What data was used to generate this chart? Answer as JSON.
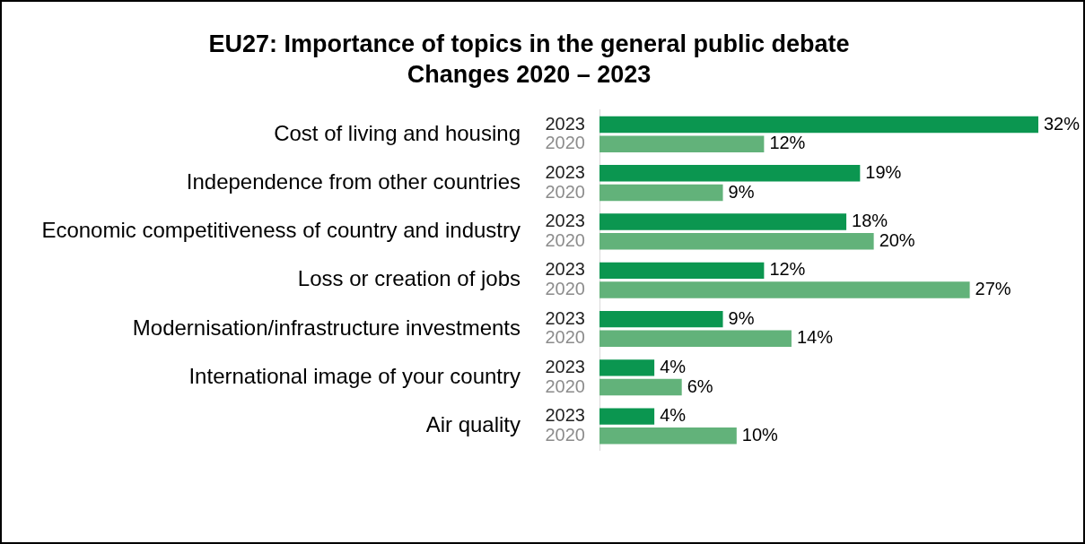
{
  "chart_data": {
    "type": "bar",
    "orientation": "horizontal",
    "title": "EU27: Importance of topics in the general public debate",
    "subtitle": "Changes 2020 – 2023",
    "categories": [
      "Cost of living and housing",
      "Independence from other countries",
      "Economic competitiveness of country and industry",
      "Loss or creation of jobs",
      "Modernisation/infrastructure investments",
      "International image of your country",
      "Air quality"
    ],
    "series": [
      {
        "name": "2023",
        "color": "#0b9650",
        "values": [
          32,
          19,
          18,
          12,
          9,
          4,
          4
        ],
        "value_labels": [
          "32%",
          "19%",
          "18%",
          "12%",
          "9%",
          "4%",
          "4%"
        ]
      },
      {
        "name": "2020",
        "color": "#62b27a",
        "values": [
          12,
          9,
          20,
          27,
          14,
          6,
          10
        ],
        "value_labels": [
          "12%",
          "9%",
          "20%",
          "27%",
          "14%",
          "6%",
          "10%"
        ]
      }
    ],
    "xlim": [
      0,
      32
    ],
    "tick_labels": "y",
    "grid": false,
    "legend": false
  }
}
